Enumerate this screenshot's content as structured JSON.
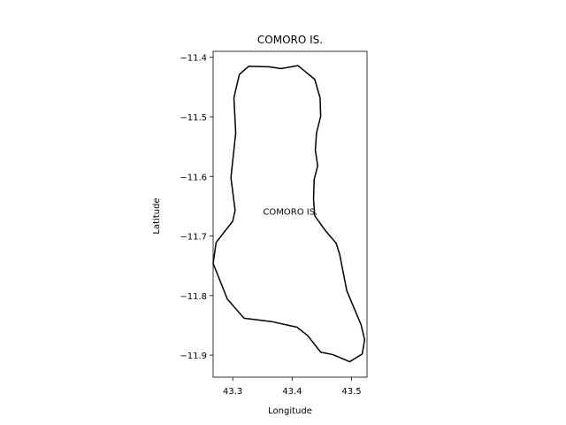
{
  "chart_data": {
    "type": "line",
    "title": "COMORO IS.",
    "xlabel": "Longitude",
    "ylabel": "Latitude",
    "xlim": [
      43.267,
      43.526
    ],
    "ylim": [
      -11.937,
      -11.39
    ],
    "grid": false,
    "legend": "none",
    "x_ticks": [
      {
        "value": 43.3,
        "label": "43.3"
      },
      {
        "value": 43.4,
        "label": "43.4"
      },
      {
        "value": 43.5,
        "label": "43.5"
      }
    ],
    "y_ticks": [
      {
        "value": -11.4,
        "label": "−11.4"
      },
      {
        "value": -11.5,
        "label": "−11.5"
      },
      {
        "value": -11.6,
        "label": "−11.6"
      },
      {
        "value": -11.7,
        "label": "−11.7"
      },
      {
        "value": -11.8,
        "label": "−11.8"
      },
      {
        "value": -11.9,
        "label": "−11.9"
      }
    ],
    "series": [
      {
        "color": "#000000",
        "points": [
          [
            43.302,
            -11.468
          ],
          [
            43.311,
            -11.429
          ],
          [
            43.327,
            -11.415
          ],
          [
            43.362,
            -11.416
          ],
          [
            43.381,
            -11.419
          ],
          [
            43.41,
            -11.414
          ],
          [
            43.438,
            -11.437
          ],
          [
            43.447,
            -11.468
          ],
          [
            43.448,
            -11.499
          ],
          [
            43.441,
            -11.527
          ],
          [
            43.439,
            -11.556
          ],
          [
            43.443,
            -11.582
          ],
          [
            43.437,
            -11.605
          ],
          [
            43.436,
            -11.638
          ],
          [
            43.438,
            -11.666
          ],
          [
            43.456,
            -11.691
          ],
          [
            43.474,
            -11.712
          ],
          [
            43.48,
            -11.731
          ],
          [
            43.492,
            -11.792
          ],
          [
            43.516,
            -11.849
          ],
          [
            43.522,
            -11.874
          ],
          [
            43.518,
            -11.898
          ],
          [
            43.497,
            -11.911
          ],
          [
            43.468,
            -11.899
          ],
          [
            43.448,
            -11.895
          ],
          [
            43.426,
            -11.867
          ],
          [
            43.408,
            -11.853
          ],
          [
            43.367,
            -11.844
          ],
          [
            43.319,
            -11.838
          ],
          [
            43.291,
            -11.806
          ],
          [
            43.267,
            -11.746
          ],
          [
            43.272,
            -11.711
          ],
          [
            43.3,
            -11.675
          ],
          [
            43.304,
            -11.657
          ],
          [
            43.297,
            -11.602
          ],
          [
            43.305,
            -11.527
          ],
          [
            43.302,
            -11.468
          ]
        ]
      }
    ],
    "annotations": [
      {
        "text": "COMORO IS.",
        "x": 43.397,
        "y": -11.66
      }
    ]
  }
}
